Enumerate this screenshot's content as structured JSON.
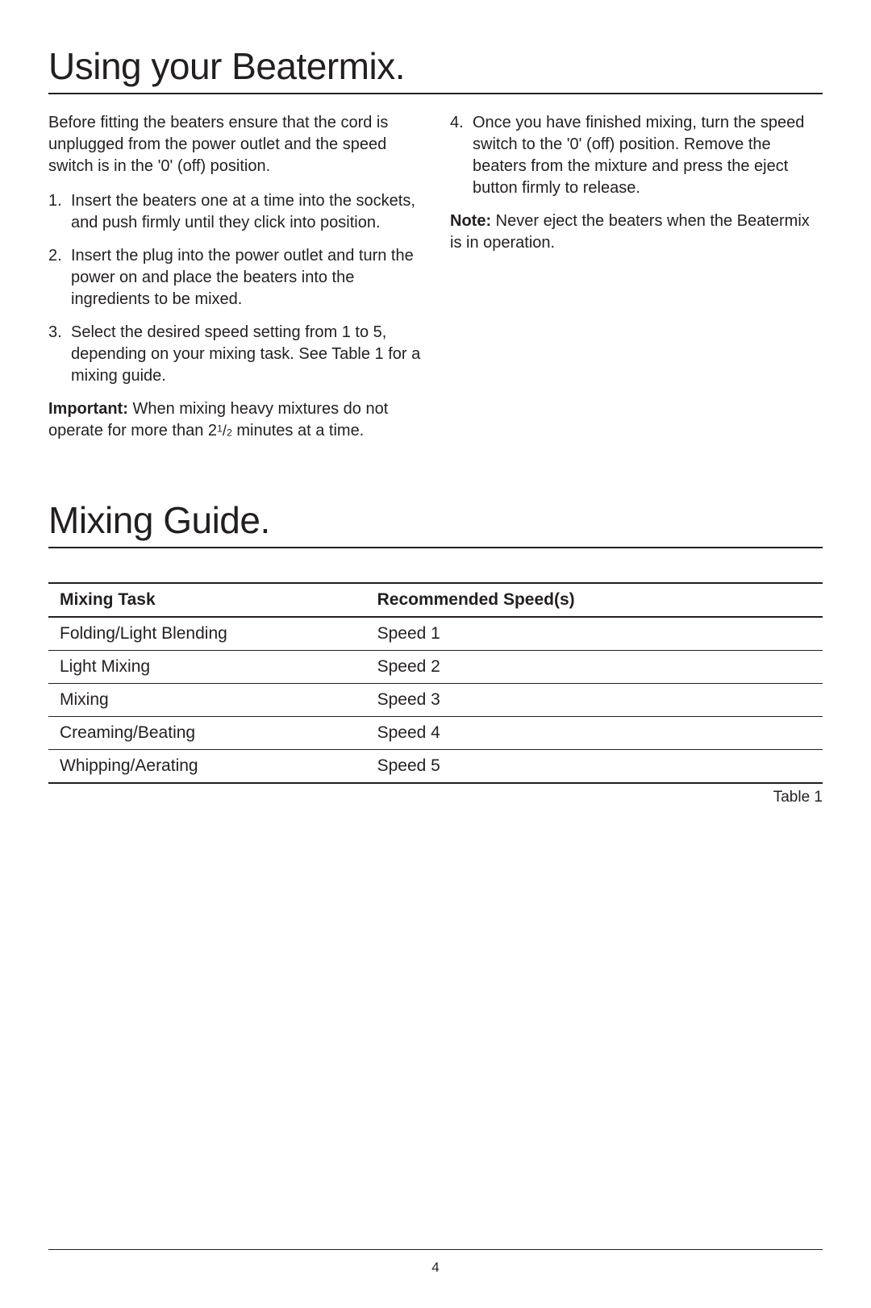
{
  "section1": {
    "heading": "Using your Beatermix.",
    "intro": "Before fitting the beaters ensure that the cord is unplugged from the power outlet and the speed switch is in the '0' (off) position.",
    "steps_left": [
      "Insert the beaters one at a time into the sockets, and push firmly until they click into position.",
      "Insert the plug into the power outlet and turn the power on and place the beaters into the ingredients to be mixed.",
      "Select the desired speed setting from 1 to 5, depending on your mixing task. See Table 1 for a mixing guide."
    ],
    "important_label": "Important:",
    "important_text_a": " When mixing heavy mixtures do not operate for more than ",
    "important_frac_whole": "2",
    "important_frac_num": "1",
    "important_frac_den": "2",
    "important_text_b": " minutes at a time.",
    "steps_right": [
      "Once you have finished mixing, turn the speed switch to the '0' (off) position. Remove the beaters from the mixture and press the eject button firmly to release."
    ],
    "note_label": "Note:",
    "note_text": " Never eject the beaters when the Beatermix is in operation."
  },
  "section2": {
    "heading": "Mixing Guide.",
    "table": {
      "columns": [
        "Mixing Task",
        "Recommended Speed(s)"
      ],
      "rows": [
        [
          "Folding/Light Blending",
          "Speed 1"
        ],
        [
          "Light Mixing",
          "Speed 2"
        ],
        [
          "Mixing",
          "Speed 3"
        ],
        [
          "Creaming/Beating",
          "Speed 4"
        ],
        [
          "Whipping/Aerating",
          "Speed 5"
        ]
      ],
      "caption": "Table 1"
    }
  },
  "page_number": "4"
}
